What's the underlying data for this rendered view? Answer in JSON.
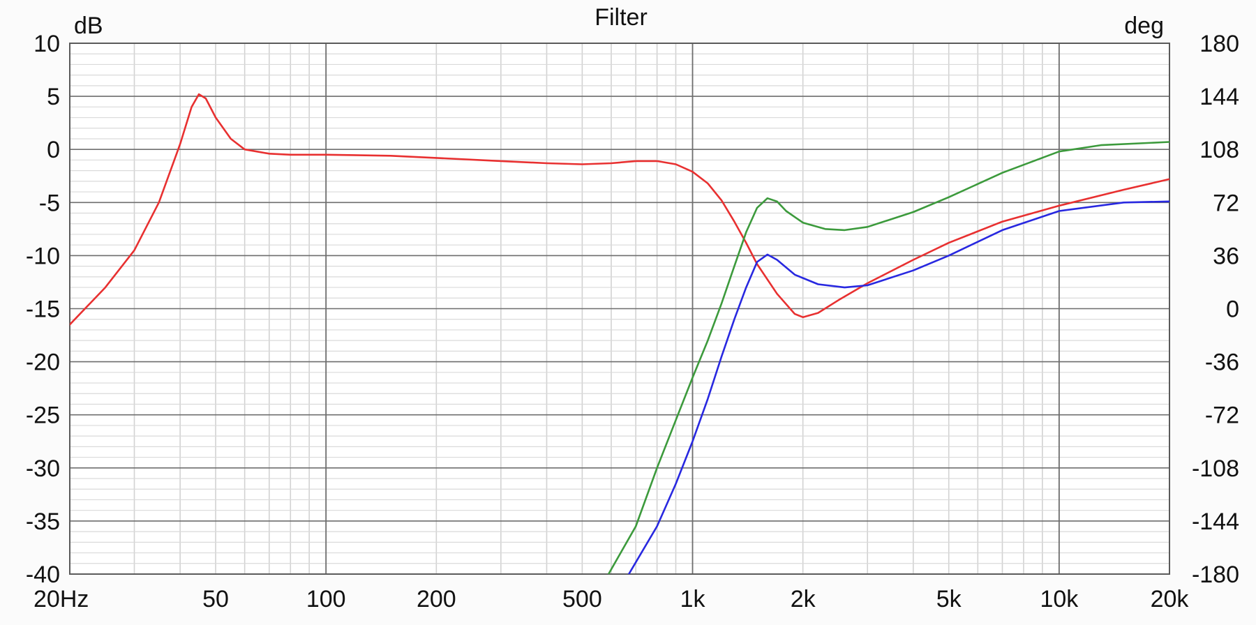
{
  "chart_data": {
    "type": "line",
    "title": "Filter",
    "y_left_unit": "dB",
    "y_right_unit": "deg",
    "x_scale": "log",
    "xlim": [
      20,
      20000
    ],
    "ylim_left": [
      -40,
      10
    ],
    "ylim_right": [
      -180,
      180
    ],
    "grid": true,
    "x_ticks": [
      {
        "value": 20,
        "label": "20Hz"
      },
      {
        "value": 50,
        "label": "50"
      },
      {
        "value": 100,
        "label": "100"
      },
      {
        "value": 200,
        "label": "200"
      },
      {
        "value": 500,
        "label": "500"
      },
      {
        "value": 1000,
        "label": "1k"
      },
      {
        "value": 2000,
        "label": "2k"
      },
      {
        "value": 5000,
        "label": "5k"
      },
      {
        "value": 10000,
        "label": "10k"
      },
      {
        "value": 20000,
        "label": "20k"
      }
    ],
    "y_left_ticks": [
      10,
      5,
      0,
      -5,
      -10,
      -15,
      -20,
      -25,
      -30,
      -35,
      -40
    ],
    "y_right_ticks": [
      180,
      144,
      108,
      72,
      36,
      0,
      -36,
      -72,
      -108,
      -144,
      -180
    ],
    "series": [
      {
        "color": "#e83030",
        "axis": "left",
        "points": [
          [
            20,
            -16.5
          ],
          [
            25,
            -13
          ],
          [
            30,
            -9.5
          ],
          [
            35,
            -5
          ],
          [
            40,
            0.5
          ],
          [
            43,
            4
          ],
          [
            45,
            5.2
          ],
          [
            47,
            4.8
          ],
          [
            50,
            3
          ],
          [
            55,
            1
          ],
          [
            60,
            0
          ],
          [
            70,
            -0.4
          ],
          [
            80,
            -0.5
          ],
          [
            100,
            -0.5
          ],
          [
            150,
            -0.6
          ],
          [
            200,
            -0.8
          ],
          [
            300,
            -1.1
          ],
          [
            400,
            -1.3
          ],
          [
            500,
            -1.4
          ],
          [
            600,
            -1.3
          ],
          [
            700,
            -1.1
          ],
          [
            800,
            -1.1
          ],
          [
            900,
            -1.4
          ],
          [
            1000,
            -2.1
          ],
          [
            1100,
            -3.2
          ],
          [
            1200,
            -4.8
          ],
          [
            1300,
            -6.8
          ],
          [
            1400,
            -8.8
          ],
          [
            1500,
            -10.8
          ],
          [
            1700,
            -13.6
          ],
          [
            1900,
            -15.5
          ],
          [
            2000,
            -15.8
          ],
          [
            2200,
            -15.4
          ],
          [
            2500,
            -14.2
          ],
          [
            3000,
            -12.6
          ],
          [
            4000,
            -10.4
          ],
          [
            5000,
            -8.8
          ],
          [
            7000,
            -6.8
          ],
          [
            10000,
            -5.3
          ],
          [
            15000,
            -3.8
          ],
          [
            20000,
            -2.8
          ]
        ]
      },
      {
        "color": "#3c9a3c",
        "axis": "left",
        "points": [
          [
            590,
            -40
          ],
          [
            700,
            -35.5
          ],
          [
            800,
            -30
          ],
          [
            900,
            -25.5
          ],
          [
            1000,
            -21.5
          ],
          [
            1100,
            -18
          ],
          [
            1200,
            -14.5
          ],
          [
            1300,
            -11
          ],
          [
            1400,
            -7.8
          ],
          [
            1500,
            -5.5
          ],
          [
            1600,
            -4.6
          ],
          [
            1700,
            -4.9
          ],
          [
            1800,
            -5.8
          ],
          [
            2000,
            -6.9
          ],
          [
            2300,
            -7.5
          ],
          [
            2600,
            -7.6
          ],
          [
            3000,
            -7.3
          ],
          [
            4000,
            -5.9
          ],
          [
            5000,
            -4.5
          ],
          [
            7000,
            -2.2
          ],
          [
            10000,
            -0.2
          ],
          [
            13000,
            0.4
          ],
          [
            20000,
            0.7
          ]
        ]
      },
      {
        "color": "#2828e0",
        "axis": "left",
        "points": [
          [
            670,
            -40
          ],
          [
            800,
            -35.5
          ],
          [
            900,
            -31.5
          ],
          [
            1000,
            -27.5
          ],
          [
            1100,
            -23.5
          ],
          [
            1200,
            -19.5
          ],
          [
            1300,
            -16
          ],
          [
            1400,
            -13
          ],
          [
            1500,
            -10.6
          ],
          [
            1600,
            -9.9
          ],
          [
            1700,
            -10.4
          ],
          [
            1900,
            -11.8
          ],
          [
            2200,
            -12.7
          ],
          [
            2600,
            -13
          ],
          [
            3000,
            -12.8
          ],
          [
            4000,
            -11.4
          ],
          [
            5000,
            -10
          ],
          [
            7000,
            -7.6
          ],
          [
            10000,
            -5.8
          ],
          [
            15000,
            -5
          ],
          [
            20000,
            -4.9
          ]
        ]
      }
    ]
  }
}
